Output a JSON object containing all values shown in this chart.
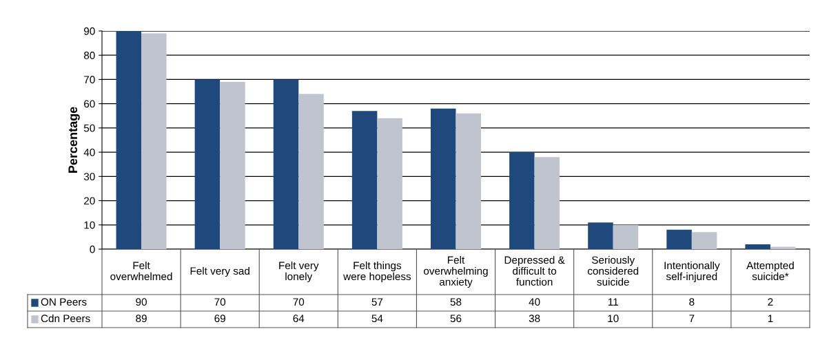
{
  "chart_data": {
    "type": "bar",
    "ylabel": "Percentage",
    "categories": [
      "Felt\noverwhelmed",
      "Felt very sad",
      "Felt very\nlonely",
      "Felt things\nwere hopeless",
      "Felt\noverwhelming\nanxiety",
      "Depressed &\ndifficult to\nfunction",
      "Seriously\nconsidered\nsuicide",
      "Intentionally\nself-injured",
      "Attempted\nsuicide*"
    ],
    "series": [
      {
        "name": "ON Peers",
        "color": "#1f497d",
        "values": [
          90,
          70,
          70,
          57,
          58,
          40,
          11,
          8,
          2
        ]
      },
      {
        "name": "Cdn Peers",
        "color": "#c0c4cf",
        "values": [
          89,
          69,
          64,
          54,
          56,
          38,
          10,
          7,
          1
        ]
      }
    ],
    "ylim": [
      0,
      90
    ],
    "yticks": [
      0,
      10,
      20,
      30,
      40,
      50,
      60,
      70,
      80,
      90
    ],
    "grid": "y",
    "legend": "bottom",
    "data_labels": true
  }
}
